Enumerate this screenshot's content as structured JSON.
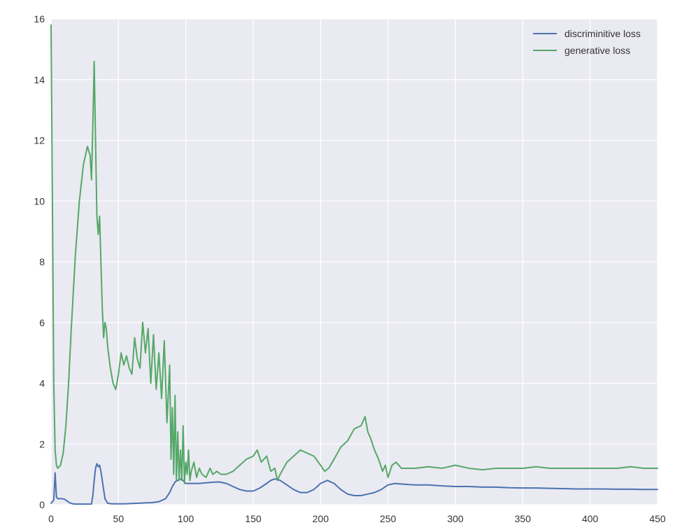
{
  "chart_data": {
    "type": "line",
    "title": "",
    "xlabel": "",
    "ylabel": "",
    "xlim": [
      0,
      450
    ],
    "ylim": [
      0,
      16
    ],
    "x_ticks": [
      0,
      50,
      100,
      150,
      200,
      250,
      300,
      350,
      400,
      450
    ],
    "y_ticks": [
      0,
      2,
      4,
      6,
      8,
      10,
      12,
      14,
      16
    ],
    "grid": true,
    "legend_position": "top-right",
    "colors": {
      "background": "#eaeaf2",
      "grid": "#ffffff"
    },
    "series": [
      {
        "name": "discriminitive loss",
        "color": "#4c72b0",
        "x": [
          0,
          2,
          3,
          4,
          5,
          6,
          8,
          10,
          12,
          14,
          16,
          18,
          20,
          25,
          30,
          31,
          32,
          33,
          34,
          35,
          36,
          37,
          38,
          39,
          40,
          42,
          45,
          50,
          55,
          60,
          65,
          70,
          75,
          80,
          85,
          88,
          90,
          92,
          94,
          96,
          98,
          100,
          105,
          110,
          115,
          120,
          125,
          130,
          135,
          140,
          145,
          150,
          155,
          160,
          163,
          166,
          170,
          175,
          180,
          185,
          190,
          195,
          200,
          205,
          210,
          215,
          220,
          225,
          230,
          235,
          240,
          245,
          250,
          255,
          260,
          270,
          280,
          290,
          300,
          310,
          320,
          330,
          340,
          350,
          360,
          370,
          380,
          390,
          400,
          410,
          420,
          430,
          440,
          450
        ],
        "values": [
          0.05,
          0.15,
          1.05,
          0.25,
          0.2,
          0.2,
          0.2,
          0.18,
          0.12,
          0.06,
          0.03,
          0.02,
          0.02,
          0.02,
          0.02,
          0.3,
          0.8,
          1.2,
          1.35,
          1.25,
          1.3,
          1.1,
          0.8,
          0.5,
          0.2,
          0.05,
          0.03,
          0.03,
          0.03,
          0.04,
          0.05,
          0.06,
          0.07,
          0.1,
          0.2,
          0.4,
          0.6,
          0.75,
          0.8,
          0.85,
          0.8,
          0.7,
          0.7,
          0.7,
          0.72,
          0.74,
          0.75,
          0.7,
          0.6,
          0.5,
          0.45,
          0.45,
          0.55,
          0.7,
          0.8,
          0.85,
          0.8,
          0.65,
          0.5,
          0.4,
          0.4,
          0.5,
          0.7,
          0.8,
          0.7,
          0.5,
          0.35,
          0.3,
          0.3,
          0.35,
          0.4,
          0.5,
          0.65,
          0.7,
          0.68,
          0.65,
          0.65,
          0.62,
          0.6,
          0.6,
          0.58,
          0.58,
          0.56,
          0.55,
          0.55,
          0.54,
          0.53,
          0.52,
          0.52,
          0.52,
          0.51,
          0.51,
          0.5,
          0.5
        ]
      },
      {
        "name": "generative loss",
        "color": "#55a868",
        "x": [
          0,
          1,
          2,
          3,
          4,
          5,
          7,
          9,
          11,
          13,
          15,
          18,
          21,
          24,
          27,
          29,
          30,
          31,
          32,
          33,
          34,
          35,
          36,
          37,
          38,
          39,
          40,
          41,
          42,
          44,
          46,
          48,
          50,
          52,
          54,
          56,
          58,
          60,
          62,
          64,
          66,
          68,
          70,
          72,
          74,
          76,
          78,
          80,
          82,
          84,
          86,
          88,
          89,
          90,
          91,
          92,
          93,
          94,
          95,
          96,
          97,
          98,
          99,
          100,
          101,
          102,
          103,
          104,
          106,
          108,
          110,
          112,
          115,
          118,
          120,
          123,
          126,
          130,
          135,
          140,
          145,
          150,
          153,
          156,
          160,
          163,
          166,
          168,
          170,
          175,
          180,
          185,
          190,
          195,
          200,
          203,
          206,
          210,
          215,
          220,
          225,
          230,
          233,
          235,
          237,
          240,
          243,
          246,
          248,
          250,
          253,
          256,
          260,
          270,
          280,
          290,
          300,
          310,
          320,
          330,
          340,
          350,
          360,
          370,
          380,
          390,
          400,
          410,
          420,
          430,
          440,
          450
        ],
        "values": [
          15.8,
          10.0,
          4.0,
          1.8,
          1.3,
          1.2,
          1.3,
          1.7,
          2.6,
          4.0,
          5.8,
          8.2,
          10.0,
          11.2,
          11.8,
          11.5,
          10.7,
          12.5,
          14.6,
          12.0,
          9.5,
          8.9,
          9.5,
          8.0,
          6.5,
          5.5,
          6.0,
          5.8,
          5.2,
          4.5,
          4.0,
          3.8,
          4.3,
          5.0,
          4.6,
          4.9,
          4.5,
          4.3,
          5.5,
          4.8,
          4.5,
          6.0,
          5.0,
          5.8,
          4.0,
          5.6,
          3.8,
          5.0,
          3.5,
          5.4,
          2.7,
          4.6,
          1.5,
          3.2,
          1.0,
          3.6,
          0.8,
          2.4,
          0.8,
          1.8,
          0.8,
          2.6,
          0.7,
          1.4,
          1.0,
          1.8,
          0.8,
          1.1,
          1.4,
          0.9,
          1.2,
          1.0,
          0.9,
          1.2,
          1.0,
          1.1,
          1.0,
          1.0,
          1.1,
          1.3,
          1.5,
          1.6,
          1.8,
          1.4,
          1.6,
          1.1,
          1.2,
          0.8,
          1.0,
          1.4,
          1.6,
          1.8,
          1.7,
          1.6,
          1.3,
          1.1,
          1.2,
          1.5,
          1.9,
          2.1,
          2.5,
          2.6,
          2.9,
          2.4,
          2.2,
          1.8,
          1.5,
          1.1,
          1.3,
          0.9,
          1.3,
          1.4,
          1.2,
          1.2,
          1.25,
          1.2,
          1.3,
          1.2,
          1.15,
          1.2,
          1.2,
          1.2,
          1.25,
          1.2,
          1.2,
          1.2,
          1.2,
          1.2,
          1.2,
          1.25,
          1.2,
          1.2
        ]
      }
    ]
  }
}
